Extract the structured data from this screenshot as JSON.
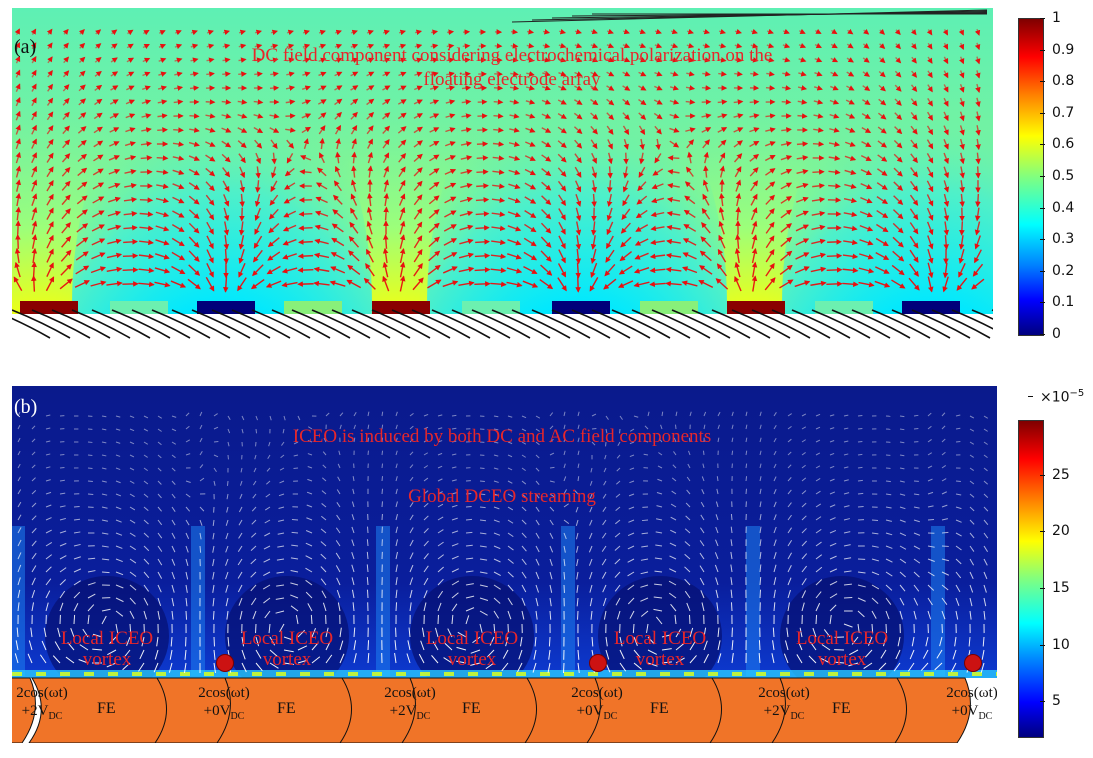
{
  "panel_a": {
    "label": "(a)",
    "title_line1": "DC field component considering electrochemical polarization on the",
    "title_line2": "floating electrode array",
    "colorbar": {
      "ticks": [
        "1",
        "0.9",
        "0.8",
        "0.7",
        "0.6",
        "0.5",
        "0.4",
        "0.3",
        "0.2",
        "0.1",
        "0"
      ],
      "colormap": "jet"
    }
  },
  "panel_b": {
    "label": "(b)",
    "title": "ICEO is induced by both DC and AC field components",
    "subtitle": "Global DCEO streaming",
    "vortex_labels": [
      {
        "line1": "Local ICEO",
        "line2": "vortex"
      },
      {
        "line1": "Local ICEO",
        "line2": "vortex"
      },
      {
        "line1": "Local ICEO",
        "line2": "vortex"
      },
      {
        "line1": "Local ICEO",
        "line2": "vortex"
      },
      {
        "line1": "Local ICEO",
        "line2": "vortex"
      }
    ],
    "electrode_labels": [
      {
        "top": "2cos(ωt)",
        "sign": "+2V",
        "sub": "DC"
      },
      {
        "top": "2cos(ωt)",
        "sign": "+0V",
        "sub": "DC"
      },
      {
        "top": "2cos(ωt)",
        "sign": "+2V",
        "sub": "DC"
      },
      {
        "top": "2cos(ωt)",
        "sign": "+0V",
        "sub": "DC"
      },
      {
        "top": "2cos(ωt)",
        "sign": "+2V",
        "sub": "DC"
      },
      {
        "top": "2cos(ωt)",
        "sign": "+0V",
        "sub": "DC"
      }
    ],
    "fe_label": "FE",
    "colorbar": {
      "exponent_base": "×10",
      "exponent": "−5",
      "ticks": [
        "25",
        "20",
        "15",
        "10",
        "5"
      ],
      "colormap": "jet"
    }
  },
  "colors": {
    "annotation_red": "#e8262a",
    "electrode_orange": "#f07428",
    "vector_red": "#e81010",
    "flow_white": "#ffffff",
    "background_blue": "#0a1a8c"
  }
}
